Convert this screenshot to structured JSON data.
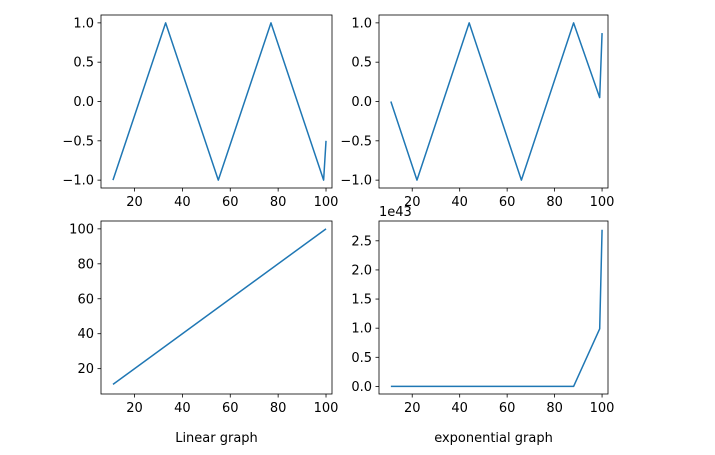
{
  "chart_data": [
    {
      "type": "line",
      "title": "",
      "xlabel": "",
      "ylabel": "",
      "xlim": [
        6,
        102.5
      ],
      "ylim": [
        -1.1,
        1.1
      ],
      "xticks": [
        20,
        40,
        60,
        80,
        100
      ],
      "yticks": [
        -1.0,
        -0.5,
        0.0,
        0.5,
        1.0
      ],
      "ytick_labels": [
        "−1.0",
        "−0.5",
        "0.0",
        "0.5",
        "1.0"
      ],
      "series": [
        {
          "color": "#1f77b4",
          "x": [
            11,
            33,
            55,
            77,
            99,
            100
          ],
          "y": [
            -1.0,
            1.0,
            -1.0,
            1.0,
            -1.0,
            -0.5
          ]
        }
      ]
    },
    {
      "type": "line",
      "title": "",
      "xlabel": "",
      "ylabel": "",
      "xlim": [
        6,
        102.5
      ],
      "ylim": [
        -1.1,
        1.1
      ],
      "xticks": [
        20,
        40,
        60,
        80,
        100
      ],
      "yticks": [
        -1.0,
        -0.5,
        0.0,
        0.5,
        1.0
      ],
      "ytick_labels": [
        "−1.0",
        "−0.5",
        "0.0",
        "0.5",
        "1.0"
      ],
      "series": [
        {
          "color": "#1f77b4",
          "x": [
            11,
            22,
            44,
            66,
            88,
            99,
            100
          ],
          "y": [
            0.0,
            -1.0,
            1.0,
            -1.0,
            1.0,
            0.05,
            0.87
          ]
        }
      ]
    },
    {
      "type": "line",
      "title": "",
      "xlabel": "Linear graph",
      "ylabel": "",
      "xlim": [
        6,
        102.5
      ],
      "ylim": [
        5.5,
        104.5
      ],
      "xticks": [
        20,
        40,
        60,
        80,
        100
      ],
      "yticks": [
        20,
        40,
        60,
        80,
        100
      ],
      "ytick_labels": [
        "20",
        "40",
        "60",
        "80",
        "100"
      ],
      "series": [
        {
          "color": "#1f77b4",
          "x": [
            11,
            100
          ],
          "y": [
            11,
            100
          ]
        }
      ]
    },
    {
      "type": "line",
      "title": "",
      "xlabel": "exponential graph",
      "ylabel": "",
      "offset_label": "1e43",
      "xlim": [
        6,
        102.5
      ],
      "ylim": [
        -0.13,
        2.84
      ],
      "xticks": [
        20,
        40,
        60,
        80,
        100
      ],
      "yticks": [
        0.0,
        0.5,
        1.0,
        1.5,
        2.0,
        2.5
      ],
      "ytick_labels": [
        "0.0",
        "0.5",
        "1.0",
        "1.5",
        "2.0",
        "2.5"
      ],
      "series": [
        {
          "color": "#1f77b4",
          "x": [
            11,
            88,
            99,
            100
          ],
          "y": [
            0.0,
            0.0,
            0.99,
            2.69
          ]
        }
      ]
    }
  ]
}
